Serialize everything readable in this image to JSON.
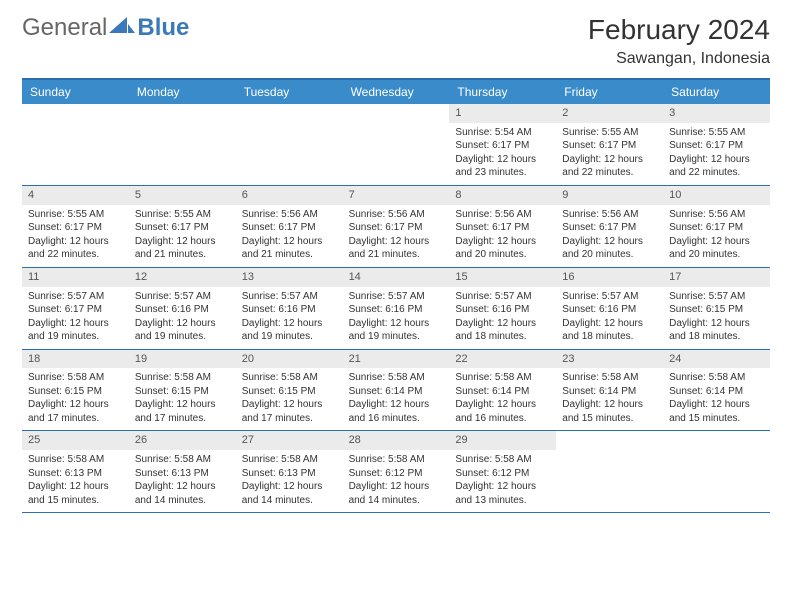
{
  "logo": {
    "part1": "General",
    "part2": "Blue"
  },
  "title": "February 2024",
  "location": "Sawangan, Indonesia",
  "colors": {
    "header_bg": "#3a8bc9",
    "border": "#2a6fb0",
    "daynum_bg": "#ebebeb",
    "logo_text": "#666666",
    "logo_blue": "#3a7ab8"
  },
  "dayNames": [
    "Sunday",
    "Monday",
    "Tuesday",
    "Wednesday",
    "Thursday",
    "Friday",
    "Saturday"
  ],
  "weeks": [
    [
      {
        "empty": true
      },
      {
        "empty": true
      },
      {
        "empty": true
      },
      {
        "empty": true
      },
      {
        "num": "1",
        "sunrise": "5:54 AM",
        "sunset": "6:17 PM",
        "daylight": "12 hours and 23 minutes."
      },
      {
        "num": "2",
        "sunrise": "5:55 AM",
        "sunset": "6:17 PM",
        "daylight": "12 hours and 22 minutes."
      },
      {
        "num": "3",
        "sunrise": "5:55 AM",
        "sunset": "6:17 PM",
        "daylight": "12 hours and 22 minutes."
      }
    ],
    [
      {
        "num": "4",
        "sunrise": "5:55 AM",
        "sunset": "6:17 PM",
        "daylight": "12 hours and 22 minutes."
      },
      {
        "num": "5",
        "sunrise": "5:55 AM",
        "sunset": "6:17 PM",
        "daylight": "12 hours and 21 minutes."
      },
      {
        "num": "6",
        "sunrise": "5:56 AM",
        "sunset": "6:17 PM",
        "daylight": "12 hours and 21 minutes."
      },
      {
        "num": "7",
        "sunrise": "5:56 AM",
        "sunset": "6:17 PM",
        "daylight": "12 hours and 21 minutes."
      },
      {
        "num": "8",
        "sunrise": "5:56 AM",
        "sunset": "6:17 PM",
        "daylight": "12 hours and 20 minutes."
      },
      {
        "num": "9",
        "sunrise": "5:56 AM",
        "sunset": "6:17 PM",
        "daylight": "12 hours and 20 minutes."
      },
      {
        "num": "10",
        "sunrise": "5:56 AM",
        "sunset": "6:17 PM",
        "daylight": "12 hours and 20 minutes."
      }
    ],
    [
      {
        "num": "11",
        "sunrise": "5:57 AM",
        "sunset": "6:17 PM",
        "daylight": "12 hours and 19 minutes."
      },
      {
        "num": "12",
        "sunrise": "5:57 AM",
        "sunset": "6:16 PM",
        "daylight": "12 hours and 19 minutes."
      },
      {
        "num": "13",
        "sunrise": "5:57 AM",
        "sunset": "6:16 PM",
        "daylight": "12 hours and 19 minutes."
      },
      {
        "num": "14",
        "sunrise": "5:57 AM",
        "sunset": "6:16 PM",
        "daylight": "12 hours and 19 minutes."
      },
      {
        "num": "15",
        "sunrise": "5:57 AM",
        "sunset": "6:16 PM",
        "daylight": "12 hours and 18 minutes."
      },
      {
        "num": "16",
        "sunrise": "5:57 AM",
        "sunset": "6:16 PM",
        "daylight": "12 hours and 18 minutes."
      },
      {
        "num": "17",
        "sunrise": "5:57 AM",
        "sunset": "6:15 PM",
        "daylight": "12 hours and 18 minutes."
      }
    ],
    [
      {
        "num": "18",
        "sunrise": "5:58 AM",
        "sunset": "6:15 PM",
        "daylight": "12 hours and 17 minutes."
      },
      {
        "num": "19",
        "sunrise": "5:58 AM",
        "sunset": "6:15 PM",
        "daylight": "12 hours and 17 minutes."
      },
      {
        "num": "20",
        "sunrise": "5:58 AM",
        "sunset": "6:15 PM",
        "daylight": "12 hours and 17 minutes."
      },
      {
        "num": "21",
        "sunrise": "5:58 AM",
        "sunset": "6:14 PM",
        "daylight": "12 hours and 16 minutes."
      },
      {
        "num": "22",
        "sunrise": "5:58 AM",
        "sunset": "6:14 PM",
        "daylight": "12 hours and 16 minutes."
      },
      {
        "num": "23",
        "sunrise": "5:58 AM",
        "sunset": "6:14 PM",
        "daylight": "12 hours and 15 minutes."
      },
      {
        "num": "24",
        "sunrise": "5:58 AM",
        "sunset": "6:14 PM",
        "daylight": "12 hours and 15 minutes."
      }
    ],
    [
      {
        "num": "25",
        "sunrise": "5:58 AM",
        "sunset": "6:13 PM",
        "daylight": "12 hours and 15 minutes."
      },
      {
        "num": "26",
        "sunrise": "5:58 AM",
        "sunset": "6:13 PM",
        "daylight": "12 hours and 14 minutes."
      },
      {
        "num": "27",
        "sunrise": "5:58 AM",
        "sunset": "6:13 PM",
        "daylight": "12 hours and 14 minutes."
      },
      {
        "num": "28",
        "sunrise": "5:58 AM",
        "sunset": "6:12 PM",
        "daylight": "12 hours and 14 minutes."
      },
      {
        "num": "29",
        "sunrise": "5:58 AM",
        "sunset": "6:12 PM",
        "daylight": "12 hours and 13 minutes."
      },
      {
        "empty": true
      },
      {
        "empty": true
      }
    ]
  ],
  "labels": {
    "sunrise": "Sunrise:",
    "sunset": "Sunset:",
    "daylight": "Daylight:"
  }
}
